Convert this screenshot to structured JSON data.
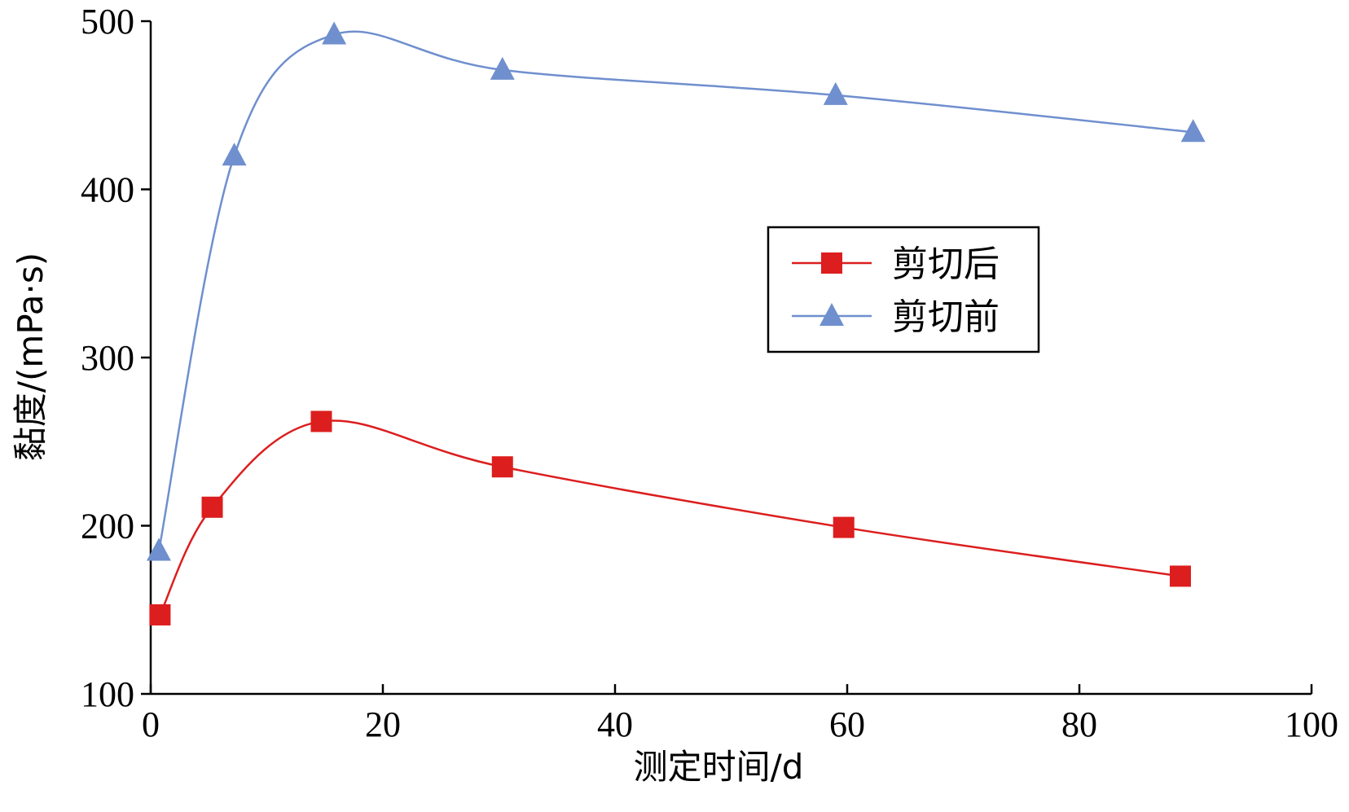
{
  "chart_data": {
    "type": "line",
    "title": "",
    "xlabel": "测定时间/d",
    "ylabel": "黏度/(mPa·s)",
    "xlim": [
      0,
      100
    ],
    "ylim": [
      100,
      500
    ],
    "x_ticks": [
      "0",
      "20",
      "40",
      "60",
      "80",
      "100"
    ],
    "y_ticks": [
      "100",
      "200",
      "300",
      "400",
      "500"
    ],
    "grid": false,
    "legend_position": "center-right",
    "smooth": true,
    "series": [
      {
        "name": "剪切后",
        "color": "#dc1e1e",
        "marker": "square",
        "x": [
          0.8,
          5.3,
          14.7,
          30.3,
          59.7,
          88.7
        ],
        "y": [
          147,
          211,
          262,
          235,
          199,
          170
        ]
      },
      {
        "name": "剪切前",
        "color": "#6f8fce",
        "marker": "triangle",
        "x": [
          0.7,
          7.2,
          15.8,
          30.3,
          59.0,
          89.8
        ],
        "y": [
          185,
          420,
          492,
          471,
          456,
          434
        ]
      }
    ]
  }
}
